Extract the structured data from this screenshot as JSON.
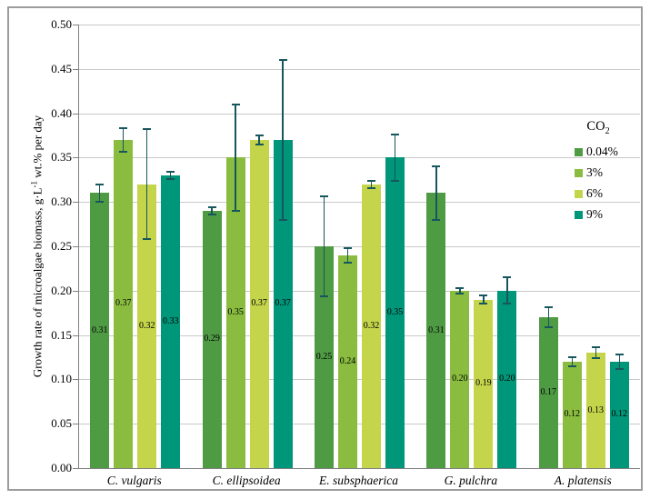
{
  "chart_data": {
    "type": "bar",
    "title": "",
    "ylabel": "Growth rate of microalgae biomass, g·L⁻¹ wt.% per day",
    "ylabel_parts": {
      "main": "Growth rate of microalgae  biomass, g·L",
      "sup": "-1",
      "tail": " wt.% per day"
    },
    "xlabel": "",
    "categories": [
      "C. vulgaris",
      "C. ellipsoidea",
      "E. subsphaerica",
      "G. pulchra",
      "A. platensis"
    ],
    "series": [
      {
        "name": "0.04%",
        "color": "#4f9b44",
        "values": [
          0.31,
          0.29,
          0.25,
          0.31,
          0.17
        ],
        "errors": [
          0.01,
          0.004,
          0.056,
          0.03,
          0.011
        ]
      },
      {
        "name": "3%",
        "color": "#8abd3f",
        "values": [
          0.37,
          0.35,
          0.24,
          0.2,
          0.12
        ],
        "errors": [
          0.013,
          0.06,
          0.008,
          0.003,
          0.005
        ]
      },
      {
        "name": "6%",
        "color": "#c4d44b",
        "values": [
          0.32,
          0.37,
          0.32,
          0.19,
          0.13
        ],
        "errors": [
          0.062,
          0.005,
          0.004,
          0.005,
          0.006
        ]
      },
      {
        "name": "9%",
        "color": "#009679",
        "values": [
          0.33,
          0.37,
          0.35,
          0.2,
          0.12
        ],
        "errors": [
          0.004,
          0.09,
          0.026,
          0.015,
          0.008
        ]
      }
    ],
    "y_axis": {
      "min": 0,
      "max": 0.5,
      "step": 0.05,
      "tick_labels": [
        "0.00",
        "0.05",
        "0.10",
        "0.15",
        "0.20",
        "0.25",
        "0.30",
        "0.35",
        "0.40",
        "0.45",
        "0.50"
      ]
    },
    "grid": true,
    "legend": {
      "position": "right-inside",
      "title_main": "CO",
      "title_sub": "2",
      "entries": [
        {
          "label": "0.04%",
          "color": "#4f9b44"
        },
        {
          "label": "3%",
          "color": "#8abd3f"
        },
        {
          "label": "6%",
          "color": "#c4d44b"
        },
        {
          "label": "9%",
          "color": "#009679"
        }
      ]
    },
    "colors": {
      "error_bar": "#17565c",
      "gridline": "#c9c9c9",
      "axis": "#808080",
      "frame_border": "#9c9c9c",
      "background": "#ffffff"
    },
    "value_label_format": "0.00"
  }
}
